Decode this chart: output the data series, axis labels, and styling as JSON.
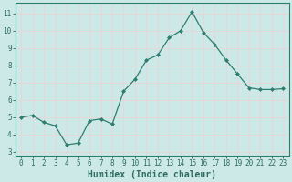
{
  "xlabel": "Humidex (Indice chaleur)",
  "x": [
    0,
    1,
    2,
    3,
    4,
    5,
    6,
    7,
    8,
    9,
    10,
    11,
    12,
    13,
    14,
    15,
    16,
    17,
    18,
    19,
    20,
    21,
    22,
    23
  ],
  "y": [
    5.0,
    5.1,
    4.7,
    4.5,
    3.4,
    3.5,
    4.8,
    4.9,
    4.6,
    6.5,
    7.2,
    8.3,
    8.6,
    9.6,
    10.0,
    11.1,
    9.9,
    9.2,
    8.3,
    7.5,
    6.7,
    6.6,
    6.6,
    6.65
  ],
  "line_color": "#2e7d6e",
  "marker": "D",
  "marker_size": 2,
  "bg_color": "#cce9e8",
  "grid_color": "#b0d8d6",
  "ylim": [
    2.8,
    11.6
  ],
  "xlim": [
    -0.5,
    23.5
  ],
  "yticks": [
    3,
    4,
    5,
    6,
    7,
    8,
    9,
    10,
    11
  ],
  "xticks": [
    0,
    1,
    2,
    3,
    4,
    5,
    6,
    7,
    8,
    9,
    10,
    11,
    12,
    13,
    14,
    15,
    16,
    17,
    18,
    19,
    20,
    21,
    22,
    23
  ],
  "tick_fontsize": 5.5,
  "xlabel_fontsize": 7.0,
  "spine_color": "#2e7d6e"
}
